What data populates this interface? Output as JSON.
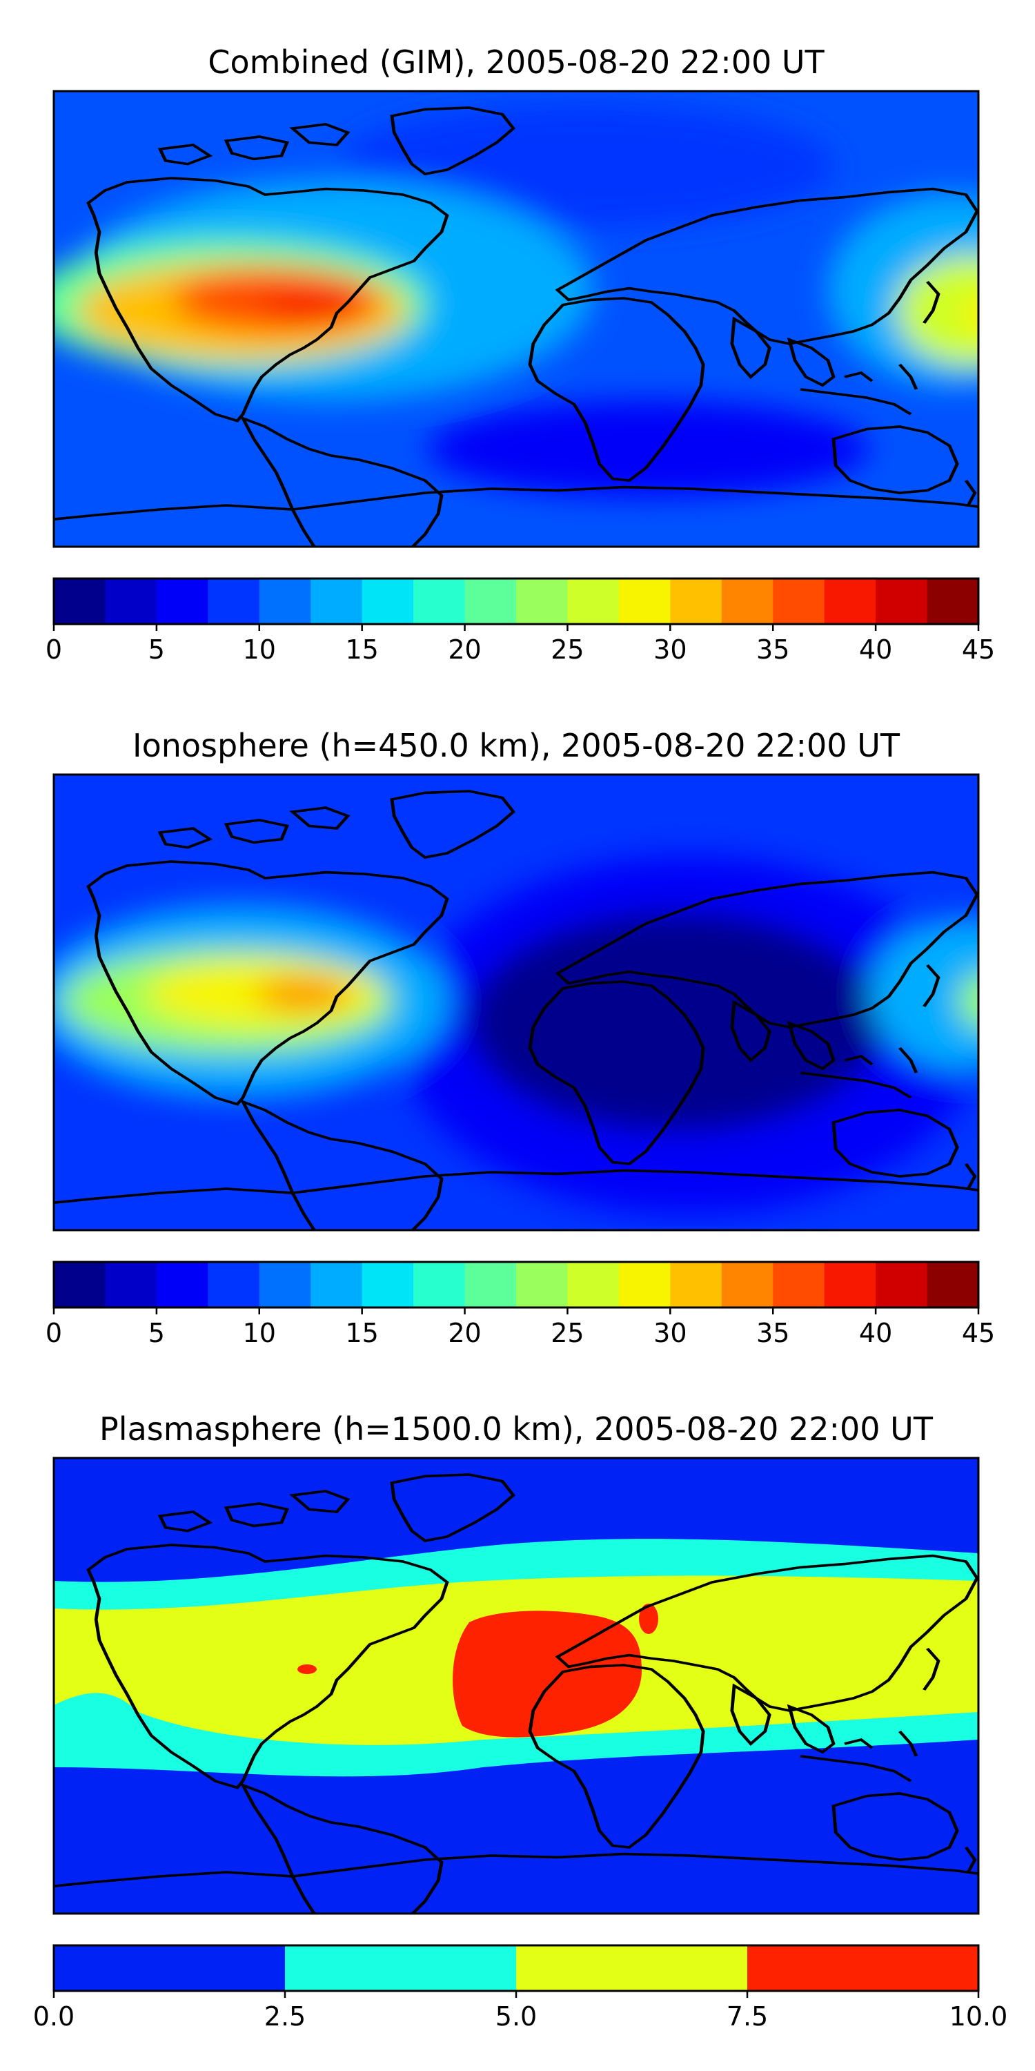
{
  "chart_data": [
    {
      "type": "heatmap",
      "title": "Combined (GIM), 2005-08-20 22:00 UT",
      "xlabel": "",
      "ylabel": "",
      "map": "world coastlines, equirectangular projection",
      "colorbar": {
        "levels": [
          0,
          2.5,
          5,
          7.5,
          10,
          12.5,
          15,
          17.5,
          20,
          22.5,
          25,
          27.5,
          30,
          32.5,
          35,
          37.5,
          40,
          42.5,
          45
        ],
        "colors": [
          "#00008d",
          "#0000c8",
          "#0000f8",
          "#0034ff",
          "#0070ff",
          "#00acff",
          "#00e4f8",
          "#28ffce",
          "#5cff9a",
          "#9aff5c",
          "#ceff28",
          "#f8f400",
          "#ffc000",
          "#ff8400",
          "#ff4c00",
          "#f81800",
          "#d00000",
          "#8d0000"
        ],
        "tick_values": [
          0,
          5,
          10,
          15,
          20,
          25,
          30,
          35,
          40,
          45
        ],
        "tick_labels": [
          "0",
          "5",
          "10",
          "15",
          "20",
          "25",
          "30",
          "35",
          "40",
          "45"
        ]
      },
      "features": [
        {
          "region": "tropical Pacific off Central/South America",
          "level": 40
        },
        {
          "region": "equatorial Atlantic",
          "level": 17.5
        },
        {
          "region": "western Pacific near Indonesia",
          "level": 30
        },
        {
          "region": "Africa / Indian Ocean",
          "level": 10
        },
        {
          "region": "southern Indian Ocean and Antarctica",
          "level": 5
        }
      ]
    },
    {
      "type": "heatmap",
      "title": "Ionosphere  (h=450.0 km), 2005-08-20 22:00 UT",
      "xlabel": "",
      "ylabel": "",
      "map": "world coastlines, equirectangular projection",
      "colorbar": {
        "levels": [
          0,
          2.5,
          5,
          7.5,
          10,
          12.5,
          15,
          17.5,
          20,
          22.5,
          25,
          27.5,
          30,
          32.5,
          35,
          37.5,
          40,
          42.5,
          45
        ],
        "colors": [
          "#00008d",
          "#0000c8",
          "#0000f8",
          "#0034ff",
          "#0070ff",
          "#00acff",
          "#00e4f8",
          "#28ffce",
          "#5cff9a",
          "#9aff5c",
          "#ceff28",
          "#f8f400",
          "#ffc000",
          "#ff8400",
          "#ff4c00",
          "#f81800",
          "#d00000",
          "#8d0000"
        ],
        "tick_values": [
          0,
          5,
          10,
          15,
          20,
          25,
          30,
          35,
          40,
          45
        ],
        "tick_labels": [
          "0",
          "5",
          "10",
          "15",
          "20",
          "25",
          "30",
          "35",
          "40",
          "45"
        ]
      },
      "features": [
        {
          "region": "tropical Pacific off Central/South America",
          "level": 32.5
        },
        {
          "region": "western Pacific",
          "level": 22.5
        },
        {
          "region": "Africa / Indian Ocean",
          "level": 2.5
        },
        {
          "region": "southern hemisphere oceans",
          "level": 2.5
        }
      ]
    },
    {
      "type": "heatmap",
      "title": "Plasmasphere (h=1500.0 km), 2005-08-20 22:00 UT",
      "xlabel": "",
      "ylabel": "",
      "map": "world coastlines, equirectangular projection",
      "colorbar": {
        "levels": [
          0,
          2.5,
          5,
          7.5,
          10
        ],
        "colors": [
          "#0022f5",
          "#18ffe2",
          "#e4ff16",
          "#ff2200"
        ],
        "tick_values": [
          0,
          2.5,
          5,
          7.5,
          10
        ],
        "tick_labels": [
          "0.0",
          "2.5",
          "5.0",
          "7.5",
          "10.0"
        ]
      },
      "features": [
        {
          "region": "high latitudes both hemispheres",
          "level": 0
        },
        {
          "region": "mid-latitude bands",
          "level": 2.5
        },
        {
          "region": "equatorial belt",
          "level": 5
        },
        {
          "region": "central Africa / eastern Atlantic",
          "level": 7.5
        }
      ]
    }
  ]
}
